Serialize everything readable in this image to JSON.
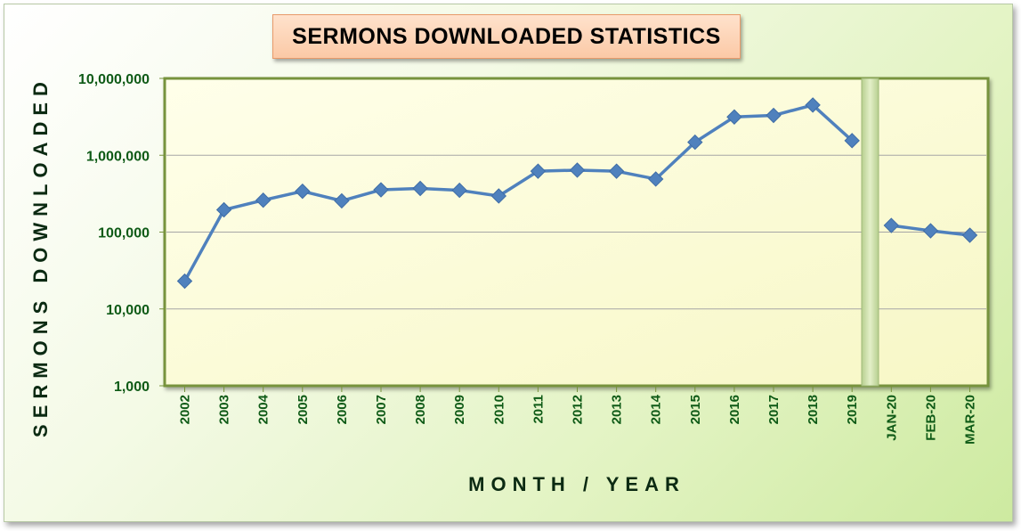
{
  "chart_data": {
    "type": "line",
    "title": "SERMONS DOWNLOADED STATISTICS",
    "xlabel": "MONTH / YEAR",
    "ylabel": "SERMONS DOWNLOADED",
    "yscale": "log",
    "ylim": [
      1000,
      10000000
    ],
    "yticks": [
      {
        "value": 10000000,
        "label": "10,000,000"
      },
      {
        "value": 1000000,
        "label": "1,000,000"
      },
      {
        "value": 100000,
        "label": "100,000"
      },
      {
        "value": 10000,
        "label": "10,000"
      },
      {
        "value": 1000,
        "label": "1,000"
      }
    ],
    "grid": true,
    "legend": "none",
    "colors": {
      "line": "#4f81bd",
      "grid": "#a6a6a6",
      "plot_fill": "#fdfdd8",
      "divider": "#c6dba0"
    },
    "segments": [
      {
        "categories": [
          "2002",
          "2003",
          "2004",
          "2005",
          "2006",
          "2007",
          "2008",
          "2009",
          "2010",
          "2011",
          "2012",
          "2013",
          "2014",
          "2015",
          "2016",
          "2017",
          "2018",
          "2019"
        ],
        "values": [
          23000,
          195000,
          260000,
          340000,
          255000,
          355000,
          370000,
          350000,
          295000,
          620000,
          640000,
          620000,
          490000,
          1480000,
          3150000,
          3300000,
          4500000,
          1550000
        ]
      },
      {
        "categories": [
          "JAN-20",
          "FEB-20",
          "MAR-20"
        ],
        "values": [
          122000,
          104000,
          91000
        ]
      }
    ]
  }
}
